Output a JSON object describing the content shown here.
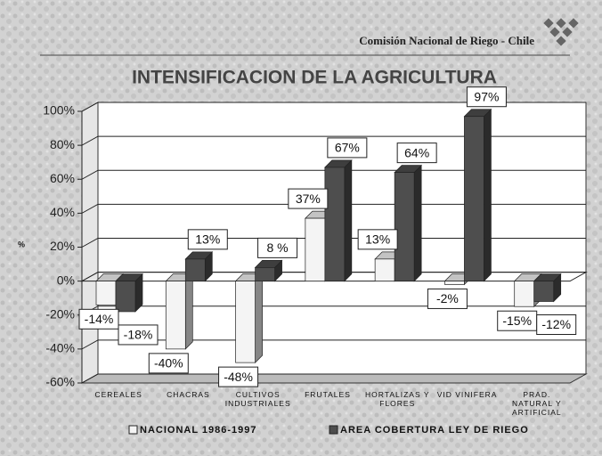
{
  "header": "Comisión Nacional de Riego - Chile",
  "chart_data": {
    "type": "bar3d",
    "title": "INTENSIFICACION DE LA AGRICULTURA",
    "y_label": "%",
    "categories": [
      "CEREALES",
      "CHACRAS",
      "CULTIVOS INDUSTRIALES",
      "FRUTALES",
      "HORTALIZAS Y FLORES",
      "VID VINIFERA",
      "PRAD. NATURAL Y ARTIFICIAL"
    ],
    "series": [
      {
        "name": "NACIONAL 1986-1997",
        "color": "#f4f4f4",
        "values": [
          -14,
          -40,
          -48,
          37,
          13,
          -2,
          -15
        ],
        "value_labels": [
          "-14%",
          "-40%",
          "-48%",
          "37%",
          "13%",
          "-2%",
          "-15%"
        ]
      },
      {
        "name": "AREA COBERTURA LEY DE RIEGO",
        "color": "#4e4e4e",
        "values": [
          -18,
          13,
          8,
          67,
          64,
          97,
          -12
        ],
        "value_labels": [
          "-18%",
          "13%",
          "8 %",
          "67%",
          "64%",
          "97%",
          "-12%"
        ]
      }
    ],
    "ylim": [
      -60,
      100
    ],
    "yticks": [
      {
        "value": -60,
        "label": "-60%"
      },
      {
        "value": -40,
        "label": "-40%"
      },
      {
        "value": -20,
        "label": "-20%"
      },
      {
        "value": 0,
        "label": "0%"
      },
      {
        "value": 20,
        "label": "20%"
      },
      {
        "value": 40,
        "label": "40%"
      },
      {
        "value": 60,
        "label": "60%"
      },
      {
        "value": 80,
        "label": "80%"
      },
      {
        "value": 100,
        "label": "100%"
      }
    ],
    "grid": true
  }
}
